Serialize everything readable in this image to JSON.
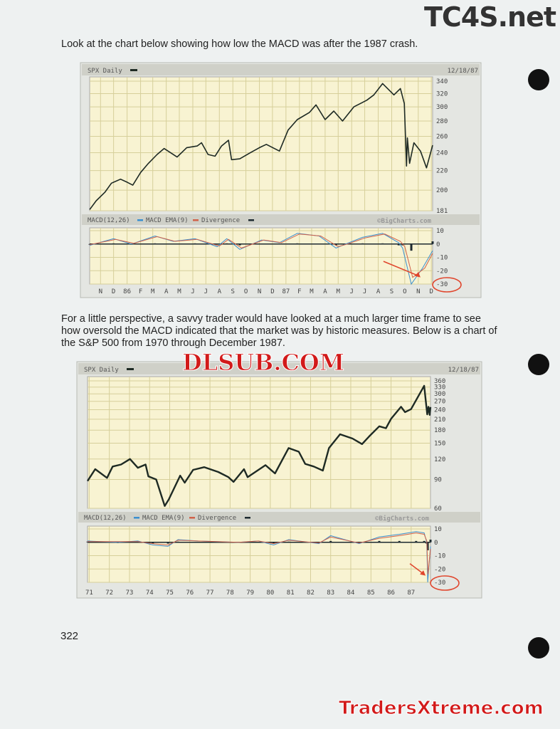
{
  "watermarks": {
    "top": "TC4S.net",
    "middle": "DLSUB.COM",
    "bottom": "TradersXtreme.com"
  },
  "text": {
    "intro": "Look at the chart below showing how low the MACD was after the 1987 crash.",
    "perspective": "For a little perspective, a savvy trader would have looked at a much larger time frame to see how oversold the MACD indicated that the market was by historic measures.  Below is a chart of the S&P 500 from 1970 through December 1987."
  },
  "page_number": "322",
  "colors": {
    "price": "#1e2a24",
    "macd": "#3a8fd0",
    "ema": "#d0624a",
    "divergence": "#1d2a30",
    "grid": "#d6cf9a",
    "plot_bg": "#f8f3d2",
    "header_bg": "#cfd0c8",
    "annotation": "#e0452c"
  },
  "chart_data": [
    {
      "type": "line",
      "title": "SPX Daily",
      "date": "12/18/87",
      "credit": "©BigCharts.com",
      "price": {
        "scale": "log",
        "ylim": [
          181,
          340
        ],
        "ticks": [
          181,
          200,
          220,
          240,
          260,
          280,
          300,
          320,
          340
        ],
        "points": [
          [
            "1985-10-21",
            182
          ],
          [
            "1985-11-05",
            190
          ],
          [
            "1985-11-25",
            198
          ],
          [
            "1985-12-10",
            207
          ],
          [
            "1985-12-31",
            211
          ],
          [
            "1986-01-15",
            208
          ],
          [
            "1986-01-28",
            205
          ],
          [
            "1986-02-15",
            218
          ],
          [
            "1986-03-05",
            228
          ],
          [
            "1986-03-25",
            238
          ],
          [
            "1986-04-10",
            245
          ],
          [
            "1986-04-25",
            240
          ],
          [
            "1986-05-10",
            235
          ],
          [
            "1986-06-01",
            246
          ],
          [
            "1986-06-25",
            248
          ],
          [
            "1986-07-05",
            252
          ],
          [
            "1986-07-20",
            238
          ],
          [
            "1986-08-05",
            236
          ],
          [
            "1986-08-20",
            248
          ],
          [
            "1986-09-05",
            255
          ],
          [
            "1986-09-12",
            232
          ],
          [
            "1986-10-01",
            233
          ],
          [
            "1986-10-25",
            240
          ],
          [
            "1986-11-15",
            246
          ],
          [
            "1986-12-01",
            250
          ],
          [
            "1986-12-31",
            242
          ],
          [
            "1987-01-20",
            268
          ],
          [
            "1987-02-10",
            282
          ],
          [
            "1987-03-10",
            292
          ],
          [
            "1987-03-25",
            303
          ],
          [
            "1987-04-15",
            282
          ],
          [
            "1987-05-05",
            294
          ],
          [
            "1987-05-25",
            280
          ],
          [
            "1987-06-20",
            300
          ],
          [
            "1987-07-20",
            310
          ],
          [
            "1987-08-05",
            318
          ],
          [
            "1987-08-25",
            336
          ],
          [
            "1987-09-20",
            318
          ],
          [
            "1987-10-05",
            328
          ],
          [
            "1987-10-14",
            305
          ],
          [
            "1987-10-19",
            225
          ],
          [
            "1987-10-21",
            258
          ],
          [
            "1987-10-26",
            228
          ],
          [
            "1987-11-05",
            252
          ],
          [
            "1987-11-20",
            242
          ],
          [
            "1987-12-04",
            223
          ],
          [
            "1987-12-18",
            249
          ]
        ]
      },
      "indicator": {
        "title": "MACD(12,26)",
        "ema_label": "MACD EMA(9)",
        "div_label": "Divergence",
        "ylim": [
          -30,
          10
        ],
        "ticks": [
          10,
          0,
          -10,
          -20,
          -30
        ],
        "macd": [
          [
            "1985-10-21",
            -1
          ],
          [
            "1985-12-15",
            4
          ],
          [
            "1986-01-25",
            0
          ],
          [
            "1986-03-20",
            6
          ],
          [
            "1986-05-01",
            2
          ],
          [
            "1986-06-20",
            4
          ],
          [
            "1986-08-10",
            -2
          ],
          [
            "1986-09-01",
            4
          ],
          [
            "1986-10-01",
            -4
          ],
          [
            "1986-11-20",
            3
          ],
          [
            "1986-12-31",
            1
          ],
          [
            "1987-02-10",
            8
          ],
          [
            "1987-04-01",
            6
          ],
          [
            "1987-05-10",
            -3
          ],
          [
            "1987-06-01",
            0
          ],
          [
            "1987-07-10",
            5
          ],
          [
            "1987-08-25",
            8
          ],
          [
            "1987-10-01",
            1
          ],
          [
            "1987-10-10",
            -3
          ],
          [
            "1987-10-30",
            -30
          ],
          [
            "1987-11-25",
            -18
          ],
          [
            "1987-12-18",
            -5
          ]
        ],
        "ema": [
          [
            "1985-10-21",
            -0.5
          ],
          [
            "1985-12-20",
            3.5
          ],
          [
            "1986-01-30",
            0.5
          ],
          [
            "1986-03-25",
            5.5
          ],
          [
            "1986-05-05",
            2
          ],
          [
            "1986-06-25",
            3.5
          ],
          [
            "1986-08-15",
            -1.5
          ],
          [
            "1986-09-05",
            3.5
          ],
          [
            "1986-10-05",
            -3
          ],
          [
            "1986-11-25",
            3
          ],
          [
            "1987-01-05",
            1
          ],
          [
            "1987-02-15",
            7.5
          ],
          [
            "1987-04-05",
            6
          ],
          [
            "1987-05-15",
            -2
          ],
          [
            "1987-06-05",
            0
          ],
          [
            "1987-07-15",
            4.5
          ],
          [
            "1987-08-30",
            7.5
          ],
          [
            "1987-10-05",
            2
          ],
          [
            "1987-10-15",
            -2
          ],
          [
            "1987-11-02",
            -25
          ],
          [
            "1987-11-30",
            -18
          ],
          [
            "1987-12-18",
            -7
          ]
        ]
      },
      "x_labels": [
        [
          "1985-11-15",
          "N"
        ],
        [
          "1985-12-15",
          "D"
        ],
        [
          "1986-01-15",
          "86"
        ],
        [
          "1986-02-15",
          "F"
        ],
        [
          "1986-03-15",
          "M"
        ],
        [
          "1986-04-15",
          "A"
        ],
        [
          "1986-05-15",
          "M"
        ],
        [
          "1986-06-15",
          "J"
        ],
        [
          "1986-07-15",
          "J"
        ],
        [
          "1986-08-15",
          "A"
        ],
        [
          "1986-09-15",
          "S"
        ],
        [
          "1986-10-15",
          "O"
        ],
        [
          "1986-11-15",
          "N"
        ],
        [
          "1986-12-15",
          "D"
        ],
        [
          "1987-01-15",
          "87"
        ],
        [
          "1987-02-15",
          "F"
        ],
        [
          "1987-03-15",
          "M"
        ],
        [
          "1987-04-15",
          "A"
        ],
        [
          "1987-05-15",
          "M"
        ],
        [
          "1987-06-15",
          "J"
        ],
        [
          "1987-07-15",
          "J"
        ],
        [
          "1987-08-15",
          "A"
        ],
        [
          "1987-09-15",
          "S"
        ],
        [
          "1987-10-15",
          "O"
        ],
        [
          "1987-11-15",
          "N"
        ],
        [
          "1987-12-15",
          "D"
        ]
      ],
      "xlim": [
        "1985-10-21",
        "1987-12-18"
      ]
    },
    {
      "type": "line",
      "title": "SPX Daily",
      "date": "12/18/87",
      "credit": "©BigCharts.com",
      "price": {
        "scale": "log",
        "ylim": [
          60,
          360
        ],
        "ticks": [
          60,
          90,
          120,
          150,
          180,
          210,
          240,
          270,
          300,
          330,
          360
        ],
        "points": [
          [
            "1970-12-01",
            88
          ],
          [
            "1971-04-20",
            104
          ],
          [
            "1971-11-20",
            92
          ],
          [
            "1972-03-01",
            108
          ],
          [
            "1972-08-01",
            111
          ],
          [
            "1973-01-10",
            120
          ],
          [
            "1973-06-01",
            106
          ],
          [
            "1973-10-20",
            111
          ],
          [
            "1973-12-10",
            94
          ],
          [
            "1974-05-01",
            90
          ],
          [
            "1974-10-03",
            62
          ],
          [
            "1974-12-15",
            68
          ],
          [
            "1975-07-10",
            95
          ],
          [
            "1975-10-01",
            86
          ],
          [
            "1976-03-01",
            103
          ],
          [
            "1976-09-20",
            107
          ],
          [
            "1977-06-01",
            100
          ],
          [
            "1977-12-01",
            93
          ],
          [
            "1978-03-05",
            87
          ],
          [
            "1978-09-10",
            104
          ],
          [
            "1978-11-15",
            93
          ],
          [
            "1979-10-05",
            110
          ],
          [
            "1980-03-27",
            98
          ],
          [
            "1980-11-28",
            140
          ],
          [
            "1981-06-01",
            133
          ],
          [
            "1981-09-25",
            112
          ],
          [
            "1982-03-01",
            108
          ],
          [
            "1982-08-12",
            102
          ],
          [
            "1982-12-01",
            140
          ],
          [
            "1983-06-20",
            170
          ],
          [
            "1984-02-01",
            160
          ],
          [
            "1984-07-24",
            148
          ],
          [
            "1984-12-01",
            165
          ],
          [
            "1985-06-01",
            190
          ],
          [
            "1985-10-01",
            185
          ],
          [
            "1985-12-31",
            211
          ],
          [
            "1986-07-01",
            250
          ],
          [
            "1986-09-12",
            232
          ],
          [
            "1986-12-31",
            242
          ],
          [
            "1987-08-25",
            336
          ],
          [
            "1987-10-19",
            225
          ],
          [
            "1987-11-10",
            250
          ],
          [
            "1987-12-04",
            223
          ],
          [
            "1987-12-18",
            249
          ]
        ]
      },
      "indicator": {
        "title": "MACD(12,26)",
        "ema_label": "MACD EMA(9)",
        "div_label": "Divergence",
        "ylim": [
          -30,
          10
        ],
        "ticks": [
          10,
          0,
          -10,
          -20,
          -30
        ],
        "macd": [
          [
            "1970-12-01",
            1
          ],
          [
            "1972-06-01",
            0
          ],
          [
            "1973-06-01",
            1
          ],
          [
            "1974-03-01",
            -2
          ],
          [
            "1974-12-01",
            -3
          ],
          [
            "1975-06-01",
            2
          ],
          [
            "1976-06-01",
            1
          ],
          [
            "1978-06-01",
            0
          ],
          [
            "1979-06-01",
            1
          ],
          [
            "1980-03-01",
            -2
          ],
          [
            "1980-12-01",
            2
          ],
          [
            "1982-06-01",
            -1
          ],
          [
            "1983-01-01",
            5
          ],
          [
            "1984-06-01",
            -1
          ],
          [
            "1985-06-01",
            4
          ],
          [
            "1986-06-01",
            6
          ],
          [
            "1987-04-01",
            8
          ],
          [
            "1987-08-25",
            7
          ],
          [
            "1987-10-10",
            0
          ],
          [
            "1987-10-28",
            -30
          ],
          [
            "1987-12-18",
            -3
          ]
        ],
        "ema": [
          [
            "1970-12-01",
            0.5
          ],
          [
            "1972-06-01",
            0.5
          ],
          [
            "1973-06-01",
            0.5
          ],
          [
            "1974-03-01",
            -1
          ],
          [
            "1974-12-01",
            -2
          ],
          [
            "1975-06-01",
            1.5
          ],
          [
            "1976-06-01",
            1
          ],
          [
            "1978-06-01",
            0
          ],
          [
            "1979-06-01",
            1
          ],
          [
            "1980-03-01",
            -1
          ],
          [
            "1980-12-01",
            1.5
          ],
          [
            "1982-06-01",
            -0.5
          ],
          [
            "1983-01-01",
            4
          ],
          [
            "1984-06-01",
            -0.5
          ],
          [
            "1985-06-01",
            3
          ],
          [
            "1986-06-01",
            5
          ],
          [
            "1987-04-01",
            7
          ],
          [
            "1987-08-25",
            6
          ],
          [
            "1987-10-12",
            1
          ],
          [
            "1987-11-01",
            -24
          ],
          [
            "1987-12-18",
            -5
          ]
        ]
      },
      "x_labels": [
        [
          "1971-01-01",
          "71"
        ],
        [
          "1972-01-01",
          "72"
        ],
        [
          "1973-01-01",
          "73"
        ],
        [
          "1974-01-01",
          "74"
        ],
        [
          "1975-01-01",
          "75"
        ],
        [
          "1976-01-01",
          "76"
        ],
        [
          "1977-01-01",
          "77"
        ],
        [
          "1978-01-01",
          "78"
        ],
        [
          "1979-01-01",
          "79"
        ],
        [
          "1980-01-01",
          "80"
        ],
        [
          "1981-01-01",
          "81"
        ],
        [
          "1982-01-01",
          "82"
        ],
        [
          "1983-01-01",
          "83"
        ],
        [
          "1984-01-01",
          "84"
        ],
        [
          "1985-01-01",
          "85"
        ],
        [
          "1986-01-01",
          "86"
        ],
        [
          "1987-01-01",
          "87"
        ]
      ],
      "xlim": [
        "1970-12-01",
        "1987-12-18"
      ]
    }
  ]
}
